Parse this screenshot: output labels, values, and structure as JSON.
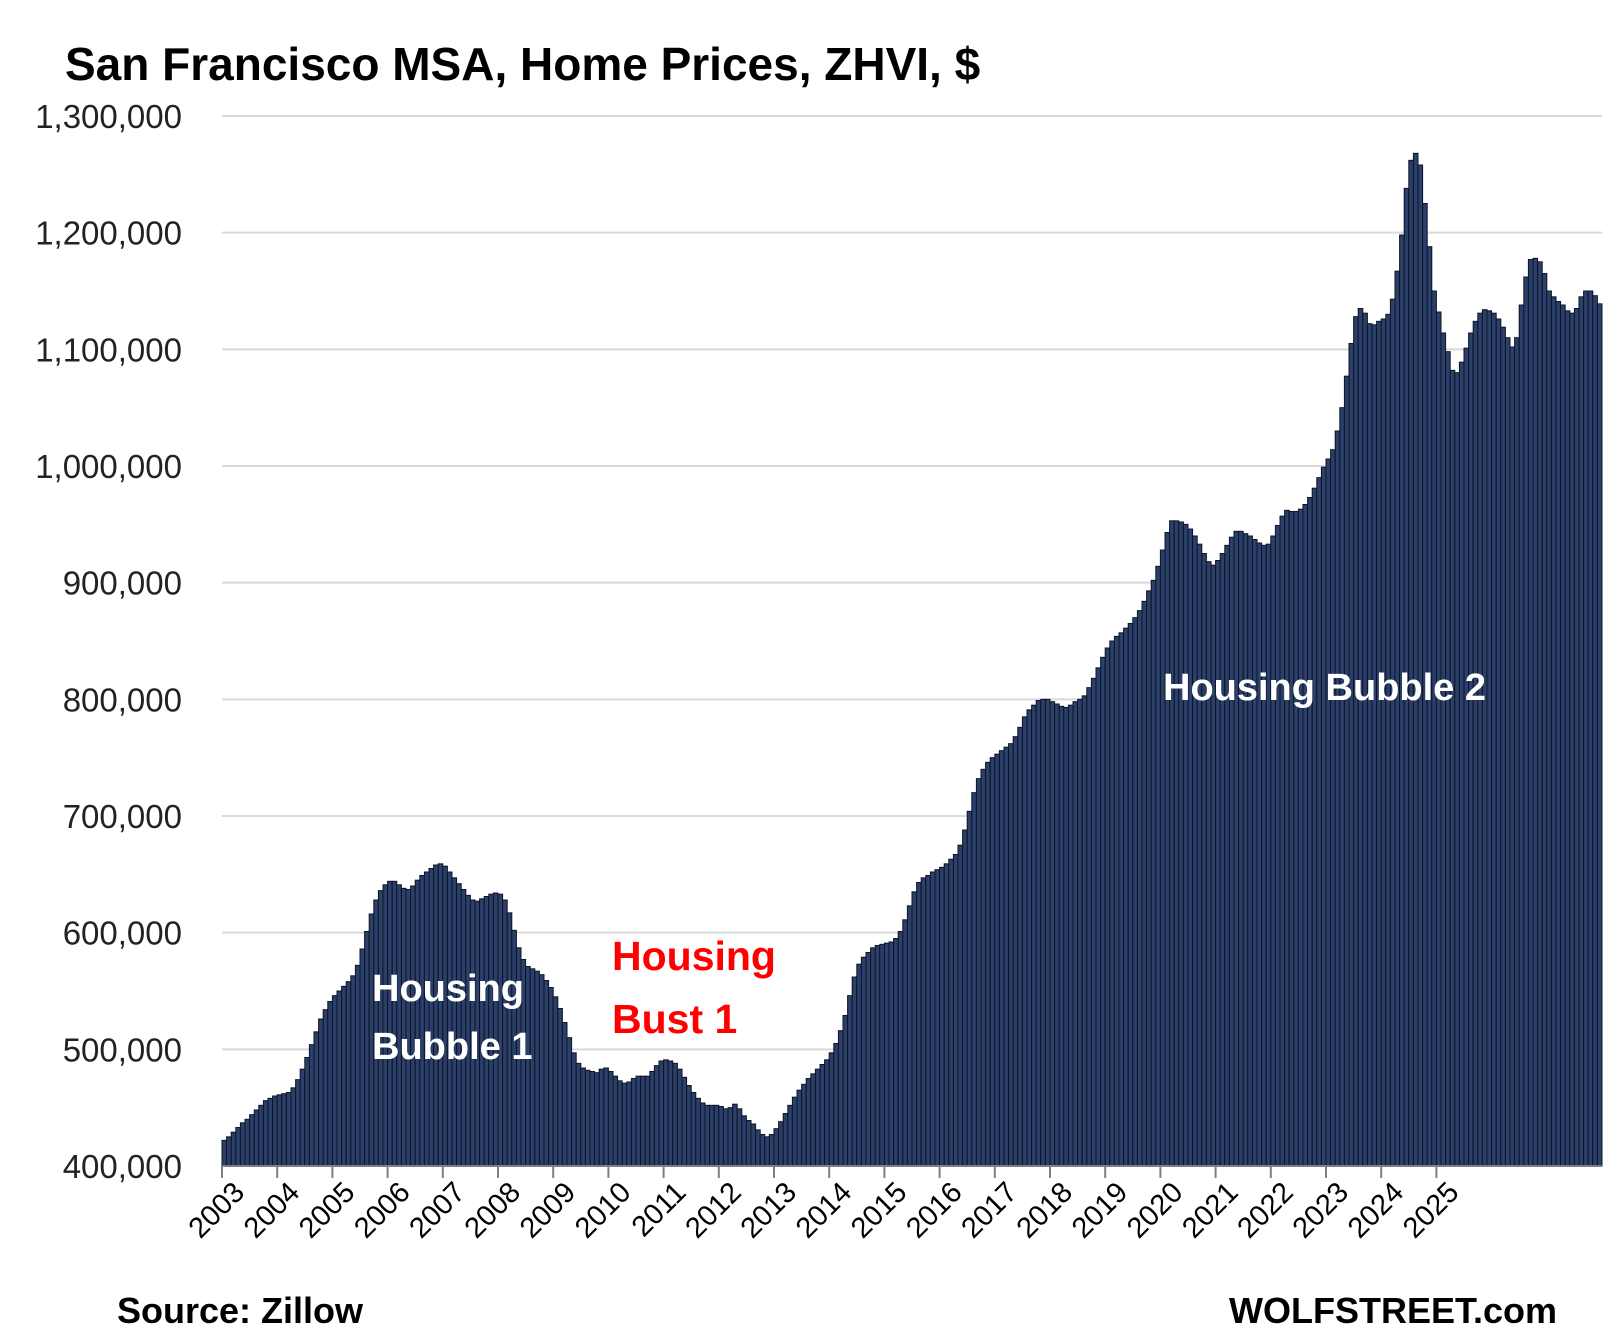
{
  "colors": {
    "bar_fill": "#2b3f6b",
    "bar_stroke": "#0d1424",
    "grid": "#d9d9d9",
    "annotation_red": "#ff0000",
    "annotation_white": "#ffffff"
  },
  "chart_data": {
    "type": "bar",
    "title": "San Francisco MSA, Home Prices, ZHVI, $",
    "xlabel": "",
    "ylabel": "",
    "ylim": [
      400000,
      1300000
    ],
    "yticks": [
      "400,000",
      "500,000",
      "600,000",
      "700,000",
      "800,000",
      "900,000",
      "1,000,000",
      "1,100,000",
      "1,200,000",
      "1,300,000"
    ],
    "xtick_labels": [
      "2003",
      "2004",
      "2005",
      "2006",
      "2007",
      "2008",
      "2009",
      "2010",
      "2011",
      "2012",
      "2013",
      "2014",
      "2015",
      "2016",
      "2017",
      "2018",
      "2019",
      "2020",
      "2021",
      "2022",
      "2023",
      "2024",
      "2025"
    ],
    "frequency": "monthly",
    "start": "2003-01",
    "end": "2025-06",
    "grid": true,
    "legend": "none",
    "annotations": [
      {
        "text": "Housing",
        "color": "white"
      },
      {
        "text": "Bubble 1",
        "color": "white"
      },
      {
        "text": "Housing",
        "color": "red"
      },
      {
        "text": "Bust 1",
        "color": "red"
      },
      {
        "text": "Housing Bubble 2",
        "color": "white"
      }
    ],
    "values": [
      422000,
      425000,
      429000,
      433000,
      437000,
      440000,
      444000,
      448000,
      452000,
      456000,
      458000,
      460000,
      461000,
      462000,
      463000,
      467000,
      474000,
      483000,
      493000,
      504000,
      515000,
      526000,
      534000,
      541000,
      546000,
      550000,
      554000,
      558000,
      563000,
      572000,
      586000,
      601000,
      616000,
      628000,
      636000,
      641000,
      644000,
      644000,
      641000,
      638000,
      637000,
      640000,
      645000,
      649000,
      652000,
      655000,
      658000,
      659000,
      657000,
      652000,
      647000,
      642000,
      637000,
      632000,
      628000,
      627000,
      629000,
      631000,
      633000,
      634000,
      633000,
      628000,
      617000,
      602000,
      587000,
      577000,
      571000,
      569000,
      567000,
      564000,
      559000,
      553000,
      545000,
      535000,
      523000,
      510000,
      497000,
      488000,
      484000,
      482000,
      481000,
      480000,
      483000,
      484000,
      481000,
      477000,
      473000,
      471000,
      472000,
      475000,
      477000,
      477000,
      477000,
      481000,
      486000,
      490000,
      491000,
      490000,
      488000,
      483000,
      476000,
      469000,
      463000,
      458000,
      454000,
      452000,
      452000,
      452000,
      451000,
      449000,
      450000,
      453000,
      449000,
      443000,
      439000,
      436000,
      431000,
      427000,
      425000,
      427000,
      432000,
      438000,
      445000,
      452000,
      459000,
      465000,
      470000,
      475000,
      479000,
      483000,
      487000,
      491000,
      497000,
      505000,
      516000,
      529000,
      546000,
      562000,
      573000,
      579000,
      583000,
      587000,
      589000,
      590000,
      591000,
      592000,
      595000,
      601000,
      611000,
      623000,
      635000,
      643000,
      647000,
      649000,
      652000,
      654000,
      656000,
      659000,
      663000,
      667000,
      675000,
      688000,
      704000,
      720000,
      732000,
      740000,
      746000,
      750000,
      753000,
      756000,
      759000,
      762000,
      768000,
      776000,
      785000,
      791000,
      795000,
      799000,
      800000,
      800000,
      798000,
      796000,
      794000,
      793000,
      795000,
      798000,
      800000,
      803000,
      810000,
      818000,
      827000,
      836000,
      844000,
      850000,
      854000,
      857000,
      861000,
      865000,
      870000,
      876000,
      884000,
      893000,
      902000,
      914000,
      928000,
      943000,
      953000,
      953000,
      952000,
      950000,
      946000,
      940000,
      933000,
      925000,
      918000,
      915000,
      919000,
      925000,
      932000,
      939000,
      944000,
      944000,
      942000,
      940000,
      937000,
      934000,
      932000,
      933000,
      940000,
      949000,
      957000,
      962000,
      961000,
      961000,
      963000,
      967000,
      973000,
      981000,
      990000,
      999000,
      1006000,
      1014000,
      1030000,
      1050000,
      1077000,
      1105000,
      1128000,
      1135000,
      1131000,
      1122000,
      1121000,
      1124000,
      1126000,
      1130000,
      1143000,
      1167000,
      1198000,
      1238000,
      1262000,
      1268000,
      1258000,
      1225000,
      1188000,
      1150000,
      1132000,
      1114000,
      1098000,
      1082000,
      1080000,
      1089000,
      1101000,
      1114000,
      1124000,
      1131000,
      1134000,
      1133000,
      1131000,
      1126000,
      1119000,
      1110000,
      1102000,
      1110000,
      1138000,
      1162000,
      1177000,
      1178000,
      1175000,
      1165000,
      1150000,
      1145000,
      1141000,
      1138000,
      1133000,
      1131000,
      1135000,
      1145000,
      1150000,
      1150000,
      1146000,
      1139000
    ]
  },
  "footer": {
    "source": "Source: Zillow",
    "brand": "WOLFSTREET.com"
  }
}
